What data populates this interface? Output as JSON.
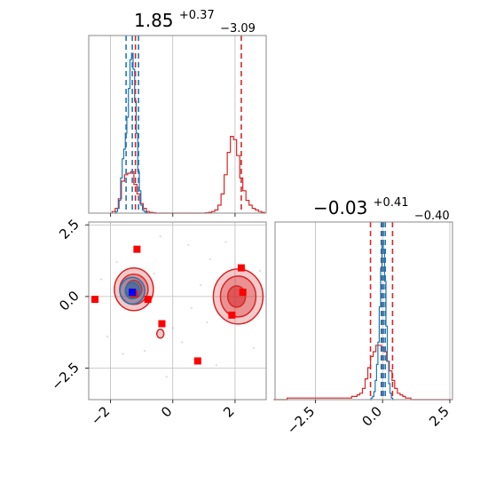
{
  "chart_data": {
    "type": "corner",
    "title_param1": {
      "value": "1.85",
      "plus": "+0.37",
      "minus": "−3.09"
    },
    "title_param2": {
      "value": "−0.03",
      "plus": "+0.41",
      "minus": "−0.40"
    },
    "xlim_param1": [
      -2.7,
      3.0
    ],
    "xlim_param2": [
      -4.0,
      2.6
    ],
    "ylim_param2": [
      -3.6,
      2.6
    ],
    "x_ticks_param1": [
      -2,
      0,
      2
    ],
    "x_ticks_param2": [
      -2.5,
      0.0,
      2.5
    ],
    "y_ticks_param2": [
      -2.5,
      0.0,
      2.5
    ],
    "x_tick_labels_param1": [
      "−2",
      "0",
      "2"
    ],
    "x_tick_labels_param2": [
      "−2.5",
      "0.0",
      "2.5"
    ],
    "y_tick_labels_param2": [
      "−2.5",
      "0.0",
      "2.5"
    ],
    "series": [
      {
        "color": "#d62728",
        "markers": [
          {
            "x": -2.5,
            "y": -0.1
          },
          {
            "x": -1.15,
            "y": 1.65
          },
          {
            "x": -1.25,
            "y": 0.1
          },
          {
            "x": -0.8,
            "y": -0.1
          },
          {
            "x": -0.35,
            "y": -0.95
          },
          {
            "x": 0.8,
            "y": -2.25
          },
          {
            "x": 1.9,
            "y": -0.65
          },
          {
            "x": 2.2,
            "y": 1.0
          },
          {
            "x": 2.25,
            "y": 0.15
          }
        ],
        "quantiles_param1": [
          -1.2,
          2.2
        ],
        "quantiles_param2": [
          -0.45,
          -0.03,
          0.37
        ],
        "hist_param1": {
          "bins_x": [
            -1.9,
            -1.8,
            -1.7,
            -1.6,
            -1.5,
            -1.4,
            -1.3,
            -1.2,
            -1.1,
            -1.0,
            -0.9,
            -0.8,
            -0.7,
            -0.6,
            -0.5,
            -0.4,
            -0.3,
            -0.2,
            -0.1,
            0.0,
            0.1,
            0.2,
            0.3,
            0.4,
            0.5,
            0.6,
            0.7,
            0.8,
            0.9,
            1.0,
            1.1,
            1.2,
            1.3,
            1.4,
            1.5,
            1.6,
            1.7,
            1.8,
            1.9,
            2.0,
            2.1,
            2.2,
            2.3,
            2.4,
            2.5,
            2.6,
            2.7,
            2.8,
            2.9
          ],
          "counts": [
            0.01,
            0.03,
            0.09,
            0.2,
            0.24,
            0.25,
            0.26,
            0.18,
            0.12,
            0.06,
            0.03,
            0.01,
            0.005,
            0.003,
            0.0,
            0.0,
            0.0,
            0.0,
            0.0,
            0.0,
            0.0,
            0.0,
            0.0,
            0.0,
            0.0,
            0.0,
            0.0,
            0.0,
            0.0,
            0.0,
            0.002,
            0.005,
            0.01,
            0.02,
            0.05,
            0.12,
            0.24,
            0.38,
            0.48,
            0.46,
            0.36,
            0.22,
            0.14,
            0.08,
            0.05,
            0.03,
            0.02,
            0.01,
            0.005
          ]
        },
        "hist_param2": {
          "bins_x": [
            -4.0,
            -3.9,
            -3.8,
            -3.7,
            -3.6,
            -3.5,
            -3.4,
            -3.3,
            -3.2,
            -3.1,
            -3.0,
            -2.9,
            -2.8,
            -2.7,
            -2.6,
            -2.5,
            -2.4,
            -2.3,
            -2.2,
            -2.1,
            -2.0,
            -1.9,
            -1.8,
            -1.7,
            -1.6,
            -1.5,
            -1.4,
            -1.3,
            -1.2,
            -1.1,
            -1.0,
            -0.9,
            -0.8,
            -0.7,
            -0.6,
            -0.5,
            -0.4,
            -0.3,
            -0.2,
            -0.1,
            0.0,
            0.1,
            0.2,
            0.3,
            0.4,
            0.5,
            0.6,
            0.7,
            0.8,
            0.9,
            1.0,
            1.1,
            1.2,
            1.3,
            1.4,
            1.5,
            1.6,
            1.7,
            1.8,
            1.9,
            2.0,
            2.1,
            2.2,
            2.3,
            2.4,
            2.5
          ],
          "counts": [
            0.0,
            0.0,
            0.0,
            0.0,
            0.0,
            0.01,
            0.01,
            0.01,
            0.01,
            0.01,
            0.01,
            0.01,
            0.01,
            0.01,
            0.01,
            0.01,
            0.01,
            0.01,
            0.01,
            0.01,
            0.01,
            0.01,
            0.01,
            0.01,
            0.01,
            0.01,
            0.01,
            0.01,
            0.01,
            0.02,
            0.02,
            0.03,
            0.04,
            0.07,
            0.13,
            0.2,
            0.27,
            0.3,
            0.34,
            0.34,
            0.33,
            0.3,
            0.24,
            0.18,
            0.12,
            0.07,
            0.04,
            0.03,
            0.02,
            0.01,
            0.01,
            0.0,
            0.0,
            0.0,
            0.0,
            0.0,
            0.0,
            0.0,
            0.0,
            0.0,
            0.0,
            0.0,
            0.0,
            0.0,
            0.0,
            0.0
          ]
        }
      },
      {
        "color": "#1f77b4",
        "markers": [
          {
            "x": -1.3,
            "y": 0.15
          }
        ],
        "marker_color": "#0000ff",
        "quantiles_param1": [
          -1.5,
          -1.3,
          -1.1
        ],
        "quantiles_param2": [
          -0.05,
          0.03,
          0.1
        ],
        "hist_param1": {
          "bins_x": [
            -1.85,
            -1.8,
            -1.75,
            -1.7,
            -1.65,
            -1.6,
            -1.55,
            -1.5,
            -1.45,
            -1.4,
            -1.35,
            -1.3,
            -1.25,
            -1.2,
            -1.15,
            -1.1,
            -1.05,
            -1.0,
            -0.95,
            -0.9,
            -0.85,
            -0.8
          ],
          "counts": [
            0.0,
            0.01,
            0.03,
            0.08,
            0.22,
            0.34,
            0.4,
            0.5,
            0.6,
            0.78,
            0.96,
            1.0,
            0.9,
            0.7,
            0.5,
            0.26,
            0.14,
            0.05,
            0.02,
            0.01,
            0.005,
            0.0
          ]
        },
        "hist_param2": {
          "bins_x": [
            -0.45,
            -0.4,
            -0.35,
            -0.3,
            -0.25,
            -0.2,
            -0.15,
            -0.1,
            -0.05,
            0.0,
            0.05,
            0.1,
            0.15,
            0.2,
            0.25,
            0.3,
            0.35,
            0.4
          ],
          "counts": [
            0.0,
            0.01,
            0.02,
            0.05,
            0.12,
            0.22,
            0.36,
            0.58,
            0.82,
            0.98,
            0.94,
            0.74,
            0.46,
            0.24,
            0.1,
            0.04,
            0.01,
            0.0
          ]
        }
      }
    ],
    "gridlines": true
  }
}
